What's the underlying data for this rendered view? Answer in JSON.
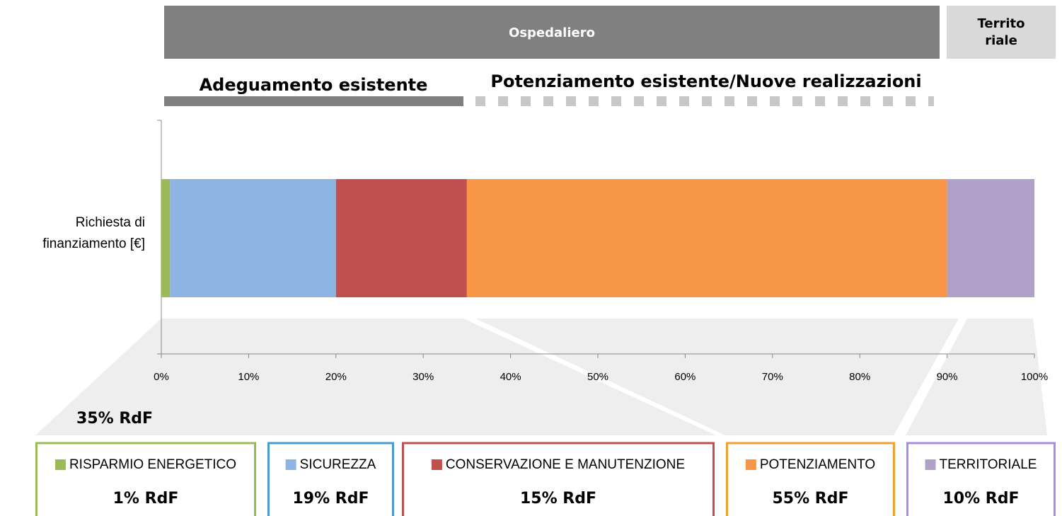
{
  "chart_data": {
    "type": "stacked_bar",
    "header_bands": [
      "Ospedaliero",
      "Territo riale"
    ],
    "subheaders": [
      "Adeguamento esistente",
      "Potenziamento esistente/Nuove realizzazioni"
    ],
    "annotation": "35% RdF",
    "categories": [
      "Richiesta di finanziamento [€]"
    ],
    "series": [
      {
        "name": "RISPARMIO ENERGETICO",
        "color": "#9bbb59",
        "values": [
          1
        ],
        "value_labels": [
          "1% RdF"
        ]
      },
      {
        "name": "SICUREZZA",
        "color": "#8eb4e3",
        "values": [
          19
        ],
        "value_labels": [
          "19% RdF"
        ]
      },
      {
        "name": "CONSERVAZIONE E MANUTENZIONE",
        "color": "#c0504d",
        "values": [
          15
        ],
        "value_labels": [
          "15% RdF"
        ]
      },
      {
        "name": "POTENZIAMENTO",
        "color": "#f79646",
        "values": [
          55
        ],
        "value_labels": [
          "55% RdF"
        ]
      },
      {
        "name": "TERRITORIALE",
        "color": "#b1a0c7",
        "values": [
          10
        ],
        "value_labels": [
          "10% RdF"
        ]
      }
    ],
    "xlim": [
      0,
      100
    ],
    "xticks": [
      {
        "value": 0,
        "label": "0%"
      },
      {
        "value": 10,
        "label": "10%"
      },
      {
        "value": 20,
        "label": "20%"
      },
      {
        "value": 30,
        "label": "30%"
      },
      {
        "value": 40,
        "label": "40%"
      },
      {
        "value": 50,
        "label": "50%"
      },
      {
        "value": 60,
        "label": "60%"
      },
      {
        "value": 70,
        "label": "70%"
      },
      {
        "value": 80,
        "label": "80%"
      },
      {
        "value": 90,
        "label": "90%"
      },
      {
        "value": 100,
        "label": "100%"
      }
    ]
  }
}
